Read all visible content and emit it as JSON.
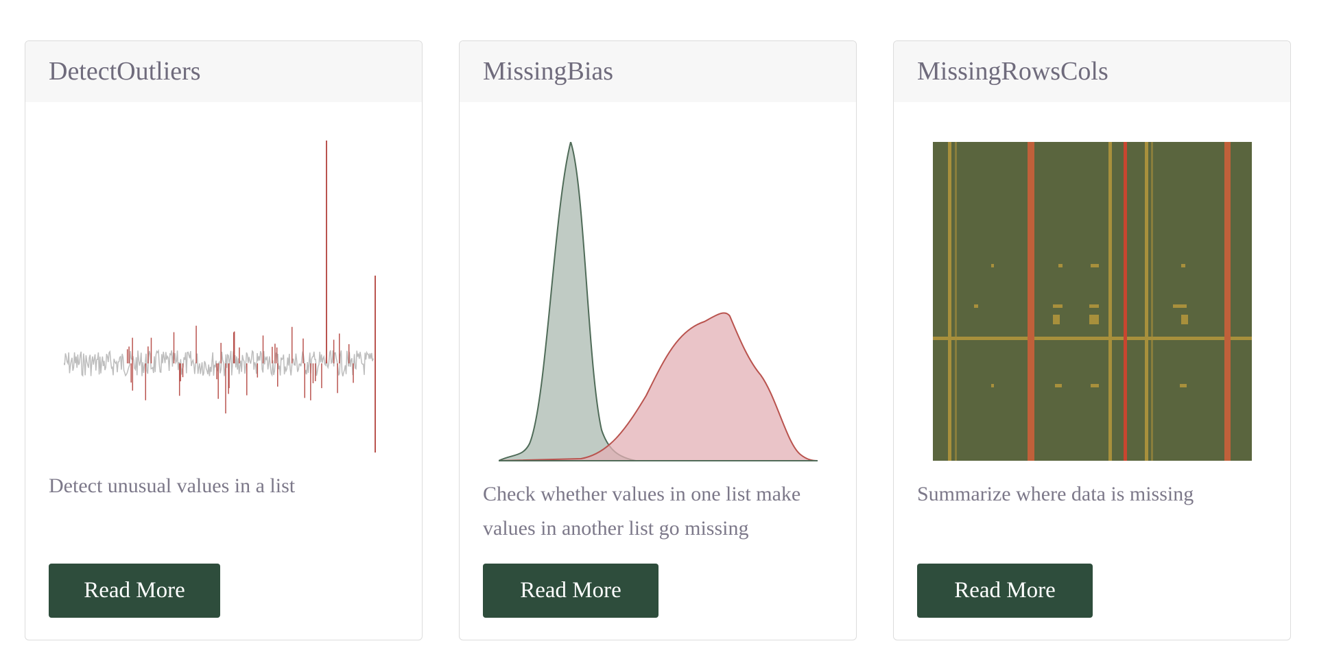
{
  "cards": [
    {
      "title": "DetectOutliers",
      "description": "Detect unusual values in a list",
      "button": "Read More"
    },
    {
      "title": "MissingBias",
      "description": "Check whether values in one list make values in another list go missing",
      "button": "Read More"
    },
    {
      "title": "MissingRowsCols",
      "description": "Summarize where data is missing",
      "button": "Read More"
    }
  ]
}
